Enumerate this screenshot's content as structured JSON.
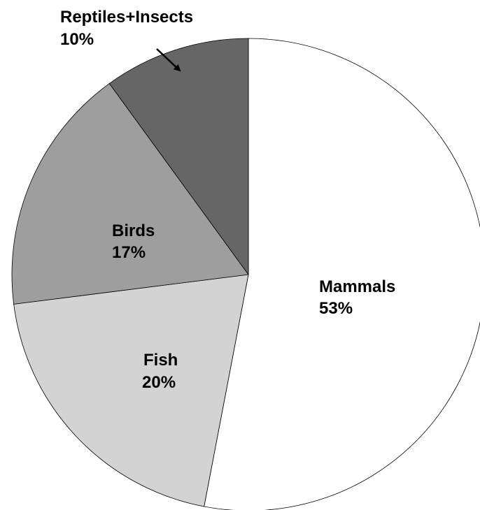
{
  "chart_data": {
    "type": "pie",
    "categories": [
      "Mammals",
      "Fish",
      "Birds",
      "Reptiles+Insects"
    ],
    "values": [
      53,
      20,
      17,
      10
    ],
    "value_labels": [
      "53%",
      "20%",
      "17%",
      "10%"
    ],
    "colors": [
      "#ffffff",
      "#d3d3d3",
      "#9e9e9e",
      "#666666"
    ],
    "start_angle_deg": 0,
    "direction": "clockwise",
    "title": "",
    "legend": "none"
  }
}
